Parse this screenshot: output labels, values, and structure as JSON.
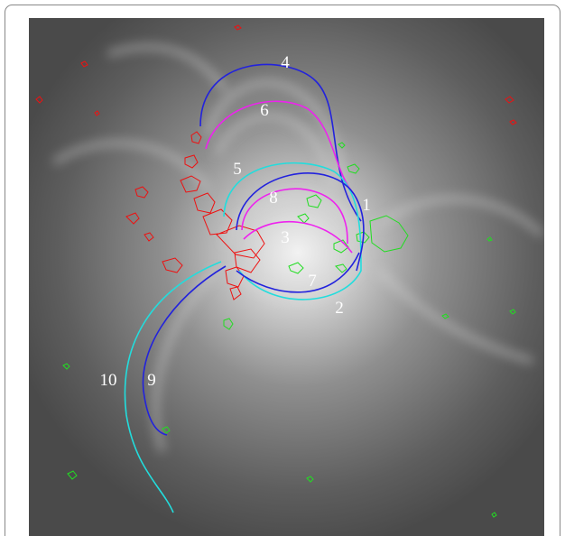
{
  "labels": {
    "l1": "1",
    "l2": "2",
    "l3": "3",
    "l4": "4",
    "l5": "5",
    "l6": "6",
    "l7": "7",
    "l8": "8",
    "l9": "9",
    "l10": "10"
  }
}
